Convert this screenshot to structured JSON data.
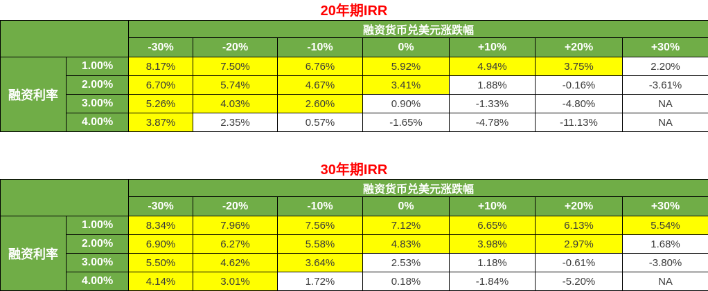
{
  "colors": {
    "header_green": "#70AD47",
    "highlight_yellow": "#FFFF00",
    "title_red": "#FF0000",
    "border_black": "#000000",
    "header_text": "#FFFFFF",
    "cell_text": "#3A3A3A"
  },
  "chart_data": [
    {
      "type": "table",
      "title": "20年期IRR",
      "top_header": "融资货币兑美元涨跌幅",
      "left_header": "融资利率",
      "col_headers": [
        "-30%",
        "-20%",
        "-10%",
        "0%",
        "+10%",
        "+20%",
        "+30%"
      ],
      "row_headers": [
        "1.00%",
        "2.00%",
        "3.00%",
        "4.00%"
      ],
      "rows": [
        [
          "8.17%",
          "7.50%",
          "6.76%",
          "5.92%",
          "4.94%",
          "3.75%",
          "2.20%"
        ],
        [
          "6.70%",
          "5.74%",
          "4.67%",
          "3.41%",
          "1.88%",
          "-0.16%",
          "-3.61%"
        ],
        [
          "5.26%",
          "4.03%",
          "2.60%",
          "0.90%",
          "-1.33%",
          "-4.80%",
          "NA"
        ],
        [
          "3.87%",
          "2.35%",
          "0.57%",
          "-1.65%",
          "-4.78%",
          "-11.13%",
          "NA"
        ]
      ],
      "highlight": [
        [
          true,
          true,
          true,
          true,
          true,
          true,
          false
        ],
        [
          true,
          true,
          true,
          true,
          false,
          false,
          false
        ],
        [
          true,
          true,
          true,
          false,
          false,
          false,
          false
        ],
        [
          true,
          false,
          false,
          false,
          false,
          false,
          false
        ]
      ]
    },
    {
      "type": "table",
      "title": "30年期IRR",
      "top_header": "融资货币兑美元涨跌幅",
      "left_header": "融资利率",
      "col_headers": [
        "-30%",
        "-20%",
        "-10%",
        "0%",
        "+10%",
        "+20%",
        "+30%"
      ],
      "row_headers": [
        "1.00%",
        "2.00%",
        "3.00%",
        "4.00%"
      ],
      "rows": [
        [
          "8.34%",
          "7.96%",
          "7.56%",
          "7.12%",
          "6.65%",
          "6.13%",
          "5.54%"
        ],
        [
          "6.90%",
          "6.27%",
          "5.58%",
          "4.83%",
          "3.98%",
          "2.97%",
          "1.68%"
        ],
        [
          "5.50%",
          "4.62%",
          "3.64%",
          "2.53%",
          "1.18%",
          "-0.61%",
          "-3.80%"
        ],
        [
          "4.14%",
          "3.01%",
          "1.72%",
          "0.18%",
          "-1.84%",
          "-5.20%",
          "NA"
        ]
      ],
      "highlight": [
        [
          true,
          true,
          true,
          true,
          true,
          true,
          true
        ],
        [
          true,
          true,
          true,
          true,
          true,
          true,
          false
        ],
        [
          true,
          true,
          true,
          false,
          false,
          false,
          false
        ],
        [
          true,
          true,
          false,
          false,
          false,
          false,
          false
        ]
      ]
    }
  ]
}
